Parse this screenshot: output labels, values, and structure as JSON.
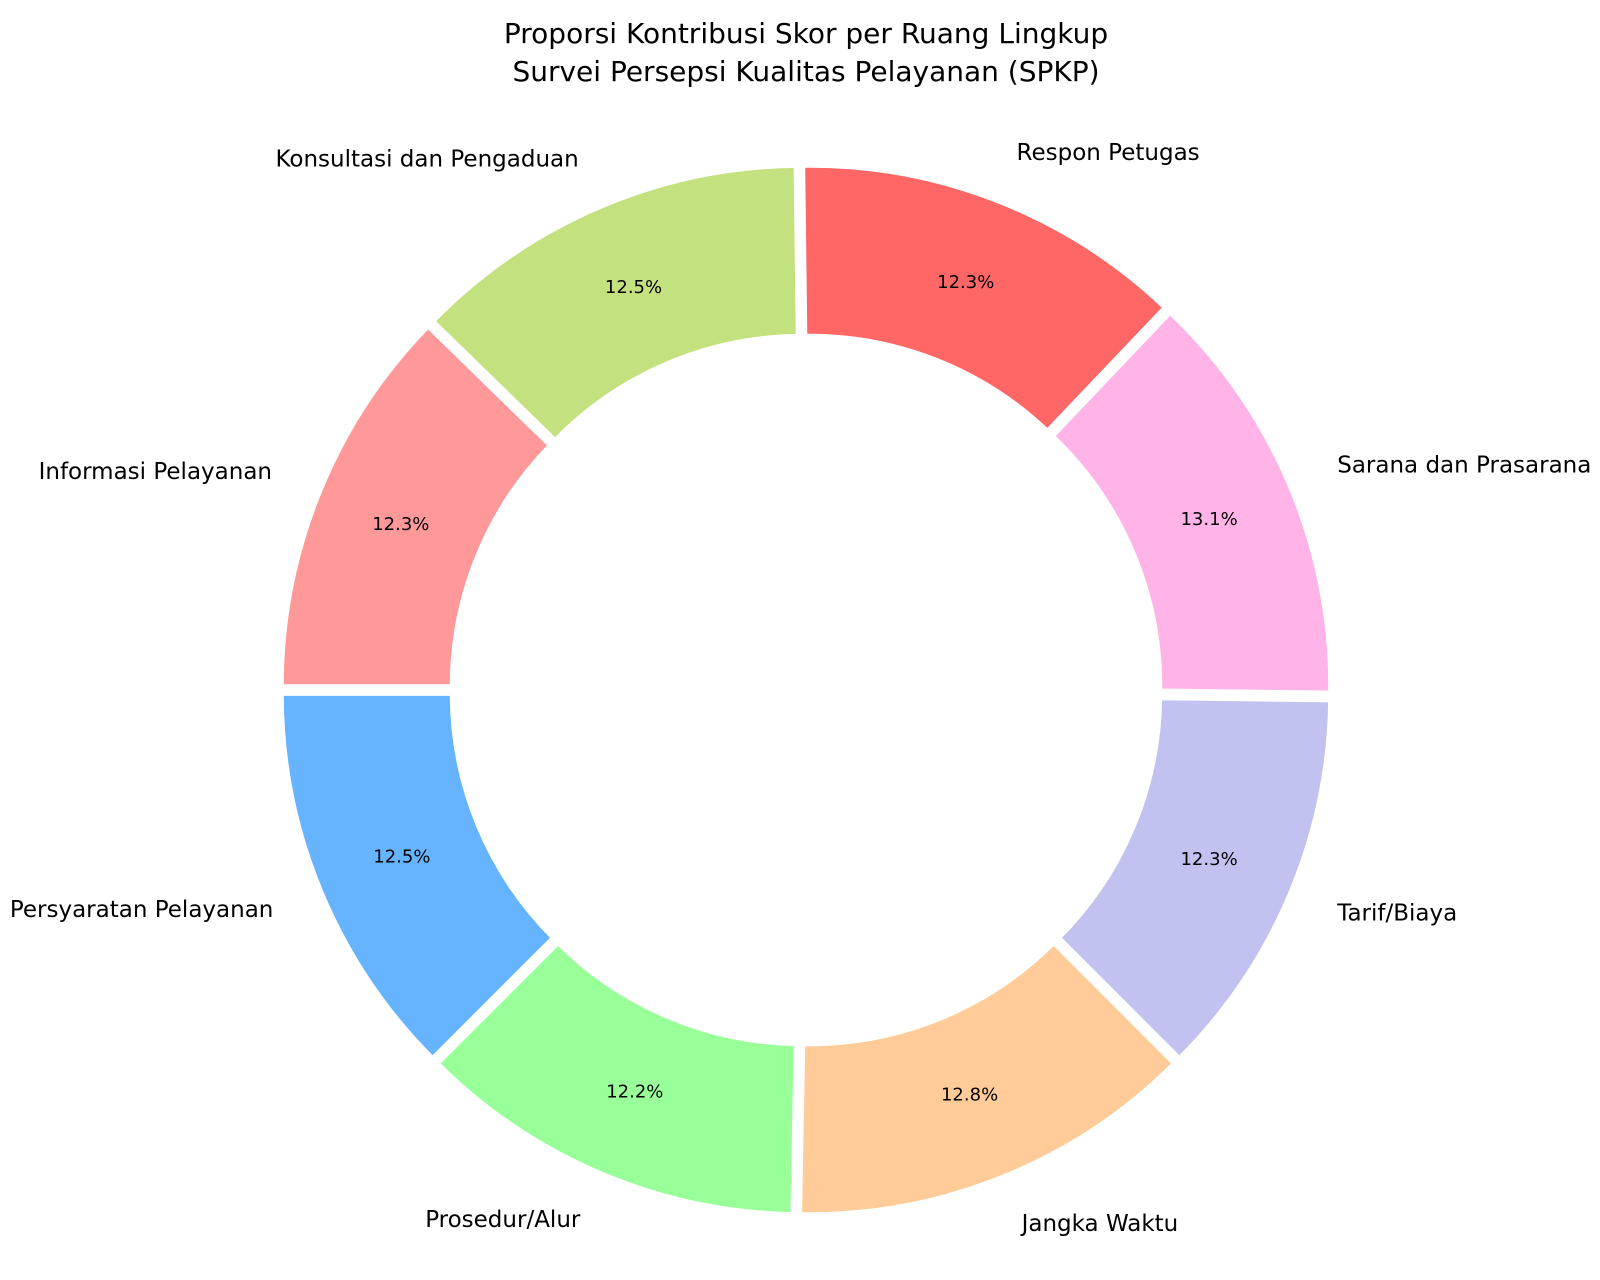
{
  "chart_data": {
    "type": "donut",
    "title": "Proporsi Kontribusi Skor per Ruang Lingkup",
    "subtitle": "Survei Persepsi Kualitas Pelayanan (SPKP)",
    "categories": [
      "Persyaratan Pelayanan",
      "Prosedur/Alur",
      "Jangka Waktu",
      "Tarif/Biaya",
      "Sarana dan Prasarana",
      "Respon Petugas",
      "Konsultasi dan Pengaduan",
      "Informasi Pelayanan"
    ],
    "values": [
      12.5,
      12.2,
      12.8,
      12.3,
      13.1,
      12.3,
      12.5,
      12.3
    ],
    "value_labels": [
      "12.5%",
      "12.2%",
      "12.8%",
      "12.3%",
      "13.1%",
      "12.3%",
      "12.5%",
      "12.3%"
    ],
    "colors": [
      "#66b3ff",
      "#99ff99",
      "#ffcc99",
      "#c2c2f0",
      "#ffb3e6",
      "#ff6666",
      "#c4e17f",
      "#ff9999"
    ]
  }
}
